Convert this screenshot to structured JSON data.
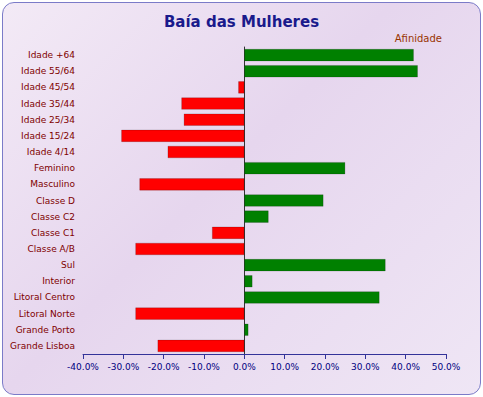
{
  "chart_data": {
    "type": "bar",
    "orientation": "horizontal",
    "title": "Baía das Mulheres",
    "annotation": "Afinidade",
    "categories": [
      "Idade +64",
      "Idade 55/64",
      "Idade 45/54",
      "Idade 35/44",
      "Idade 25/34",
      "Idade 15/24",
      "Idade 4/14",
      "Feminino",
      "Masculino",
      "Classe D",
      "Classe C2",
      "Classe C1",
      "Classe A/B",
      "Sul",
      "Interior",
      "Litoral Centro",
      "Litoral Norte",
      "Grande Porto",
      "Grande Lisboa"
    ],
    "values": [
      42,
      43,
      -1.5,
      -15.6,
      -15,
      -30.5,
      -19,
      25,
      -26,
      19.6,
      6,
      -8,
      -27,
      35,
      2,
      33.5,
      -27,
      1,
      -21.5
    ],
    "colors": [
      "#008000",
      "#008000",
      "#ff0000",
      "#ff0000",
      "#ff0000",
      "#ff0000",
      "#ff0000",
      "#008000",
      "#ff0000",
      "#008000",
      "#008000",
      "#ff0000",
      "#ff0000",
      "#008000",
      "#008000",
      "#008000",
      "#ff0000",
      "#008000",
      "#ff0000"
    ],
    "xlim": [
      -40,
      50
    ],
    "xticks": [
      {
        "value": -40,
        "label": "-40.0%"
      },
      {
        "value": -30,
        "label": "-30.0%"
      },
      {
        "value": -20,
        "label": "-20.0%"
      },
      {
        "value": -10,
        "label": "-10.0%"
      },
      {
        "value": 0,
        "label": "0.0%"
      },
      {
        "value": 10,
        "label": "10.0%"
      },
      {
        "value": 20,
        "label": "20.0%"
      },
      {
        "value": 30,
        "label": "30.0%"
      },
      {
        "value": 40,
        "label": "40.0%"
      },
      {
        "value": 50,
        "label": "50.0%"
      }
    ],
    "grid": false
  }
}
